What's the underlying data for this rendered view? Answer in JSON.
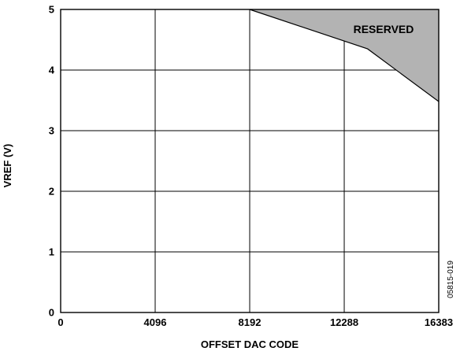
{
  "chart_data": {
    "type": "area",
    "title": "",
    "xlabel": "OFFSET DAC CODE",
    "ylabel": "VREF (V)",
    "xlim": [
      0,
      16383
    ],
    "ylim": [
      0,
      5
    ],
    "xticks": [
      0,
      4096,
      8192,
      12288,
      16383
    ],
    "yticks": [
      0,
      1,
      2,
      3,
      4,
      5
    ],
    "x_tick_labels": [
      "0",
      "4096",
      "8192",
      "12288",
      "16383"
    ],
    "y_tick_labels": [
      "0",
      "1",
      "2",
      "3",
      "4",
      "5"
    ],
    "grid": true,
    "region": {
      "label": "RESERVED",
      "color": "#b3b3b3",
      "boundary": [
        {
          "x": 8192,
          "y": 5.0
        },
        {
          "x": 13300,
          "y": 4.35
        },
        {
          "x": 16383,
          "y": 3.48
        }
      ]
    },
    "figure_id": "05815-019"
  }
}
